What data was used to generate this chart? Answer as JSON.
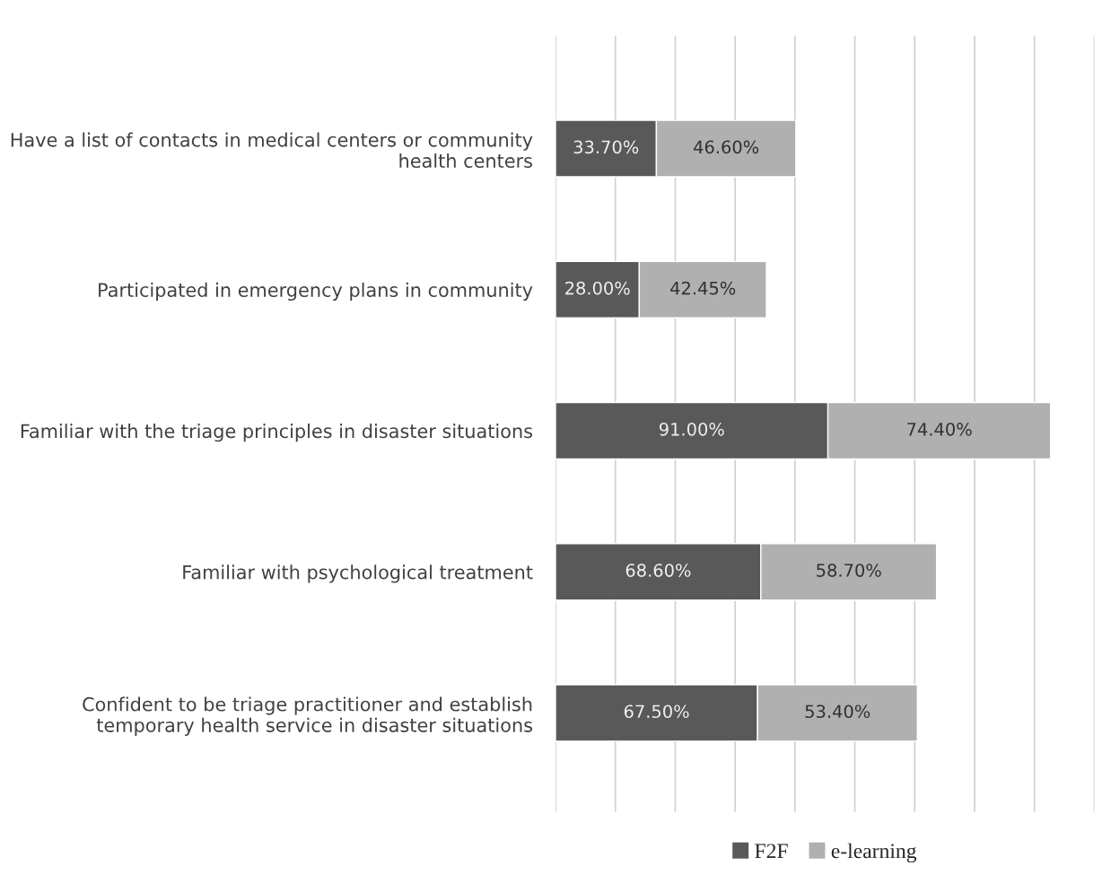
{
  "chart_data": {
    "type": "bar",
    "orientation": "horizontal",
    "stacked": true,
    "categories": [
      "Have a list of contacts in medical centers or community health centers",
      "Participated in emergency plans in community",
      "Familiar with the triage principles in disaster situations",
      "Familiar with psychological treatment",
      "Confident to be triage practitioner and establish temporary health service in disaster situations"
    ],
    "series": [
      {
        "name": "F2F",
        "color": "#595959",
        "values": [
          33.7,
          28.0,
          91.0,
          68.6,
          67.5
        ],
        "value_labels": [
          "33.70%",
          "28.00%",
          "91.00%",
          "68.60%",
          "67.50%"
        ]
      },
      {
        "name": "e-learning",
        "color": "#b0b0b0",
        "values": [
          46.6,
          42.45,
          74.4,
          58.7,
          53.4
        ],
        "value_labels": [
          "46.60%",
          "42.45%",
          "74.40%",
          "58.70%",
          "53.40%"
        ]
      }
    ],
    "xlim": [
      0,
      180
    ],
    "xticks": [
      {
        "value": 0,
        "label": null
      },
      {
        "value": 20,
        "label": null
      },
      {
        "value": 40,
        "label": null
      },
      {
        "value": 60,
        "label": null
      },
      {
        "value": 80,
        "label": null
      },
      {
        "value": 100,
        "label": null
      },
      {
        "value": 120,
        "label": null
      },
      {
        "value": 140,
        "label": null
      },
      {
        "value": 160,
        "label": null
      },
      {
        "value": 180,
        "label": null
      }
    ],
    "tick_labels": "y",
    "grid": "x",
    "legend": "bottom"
  }
}
